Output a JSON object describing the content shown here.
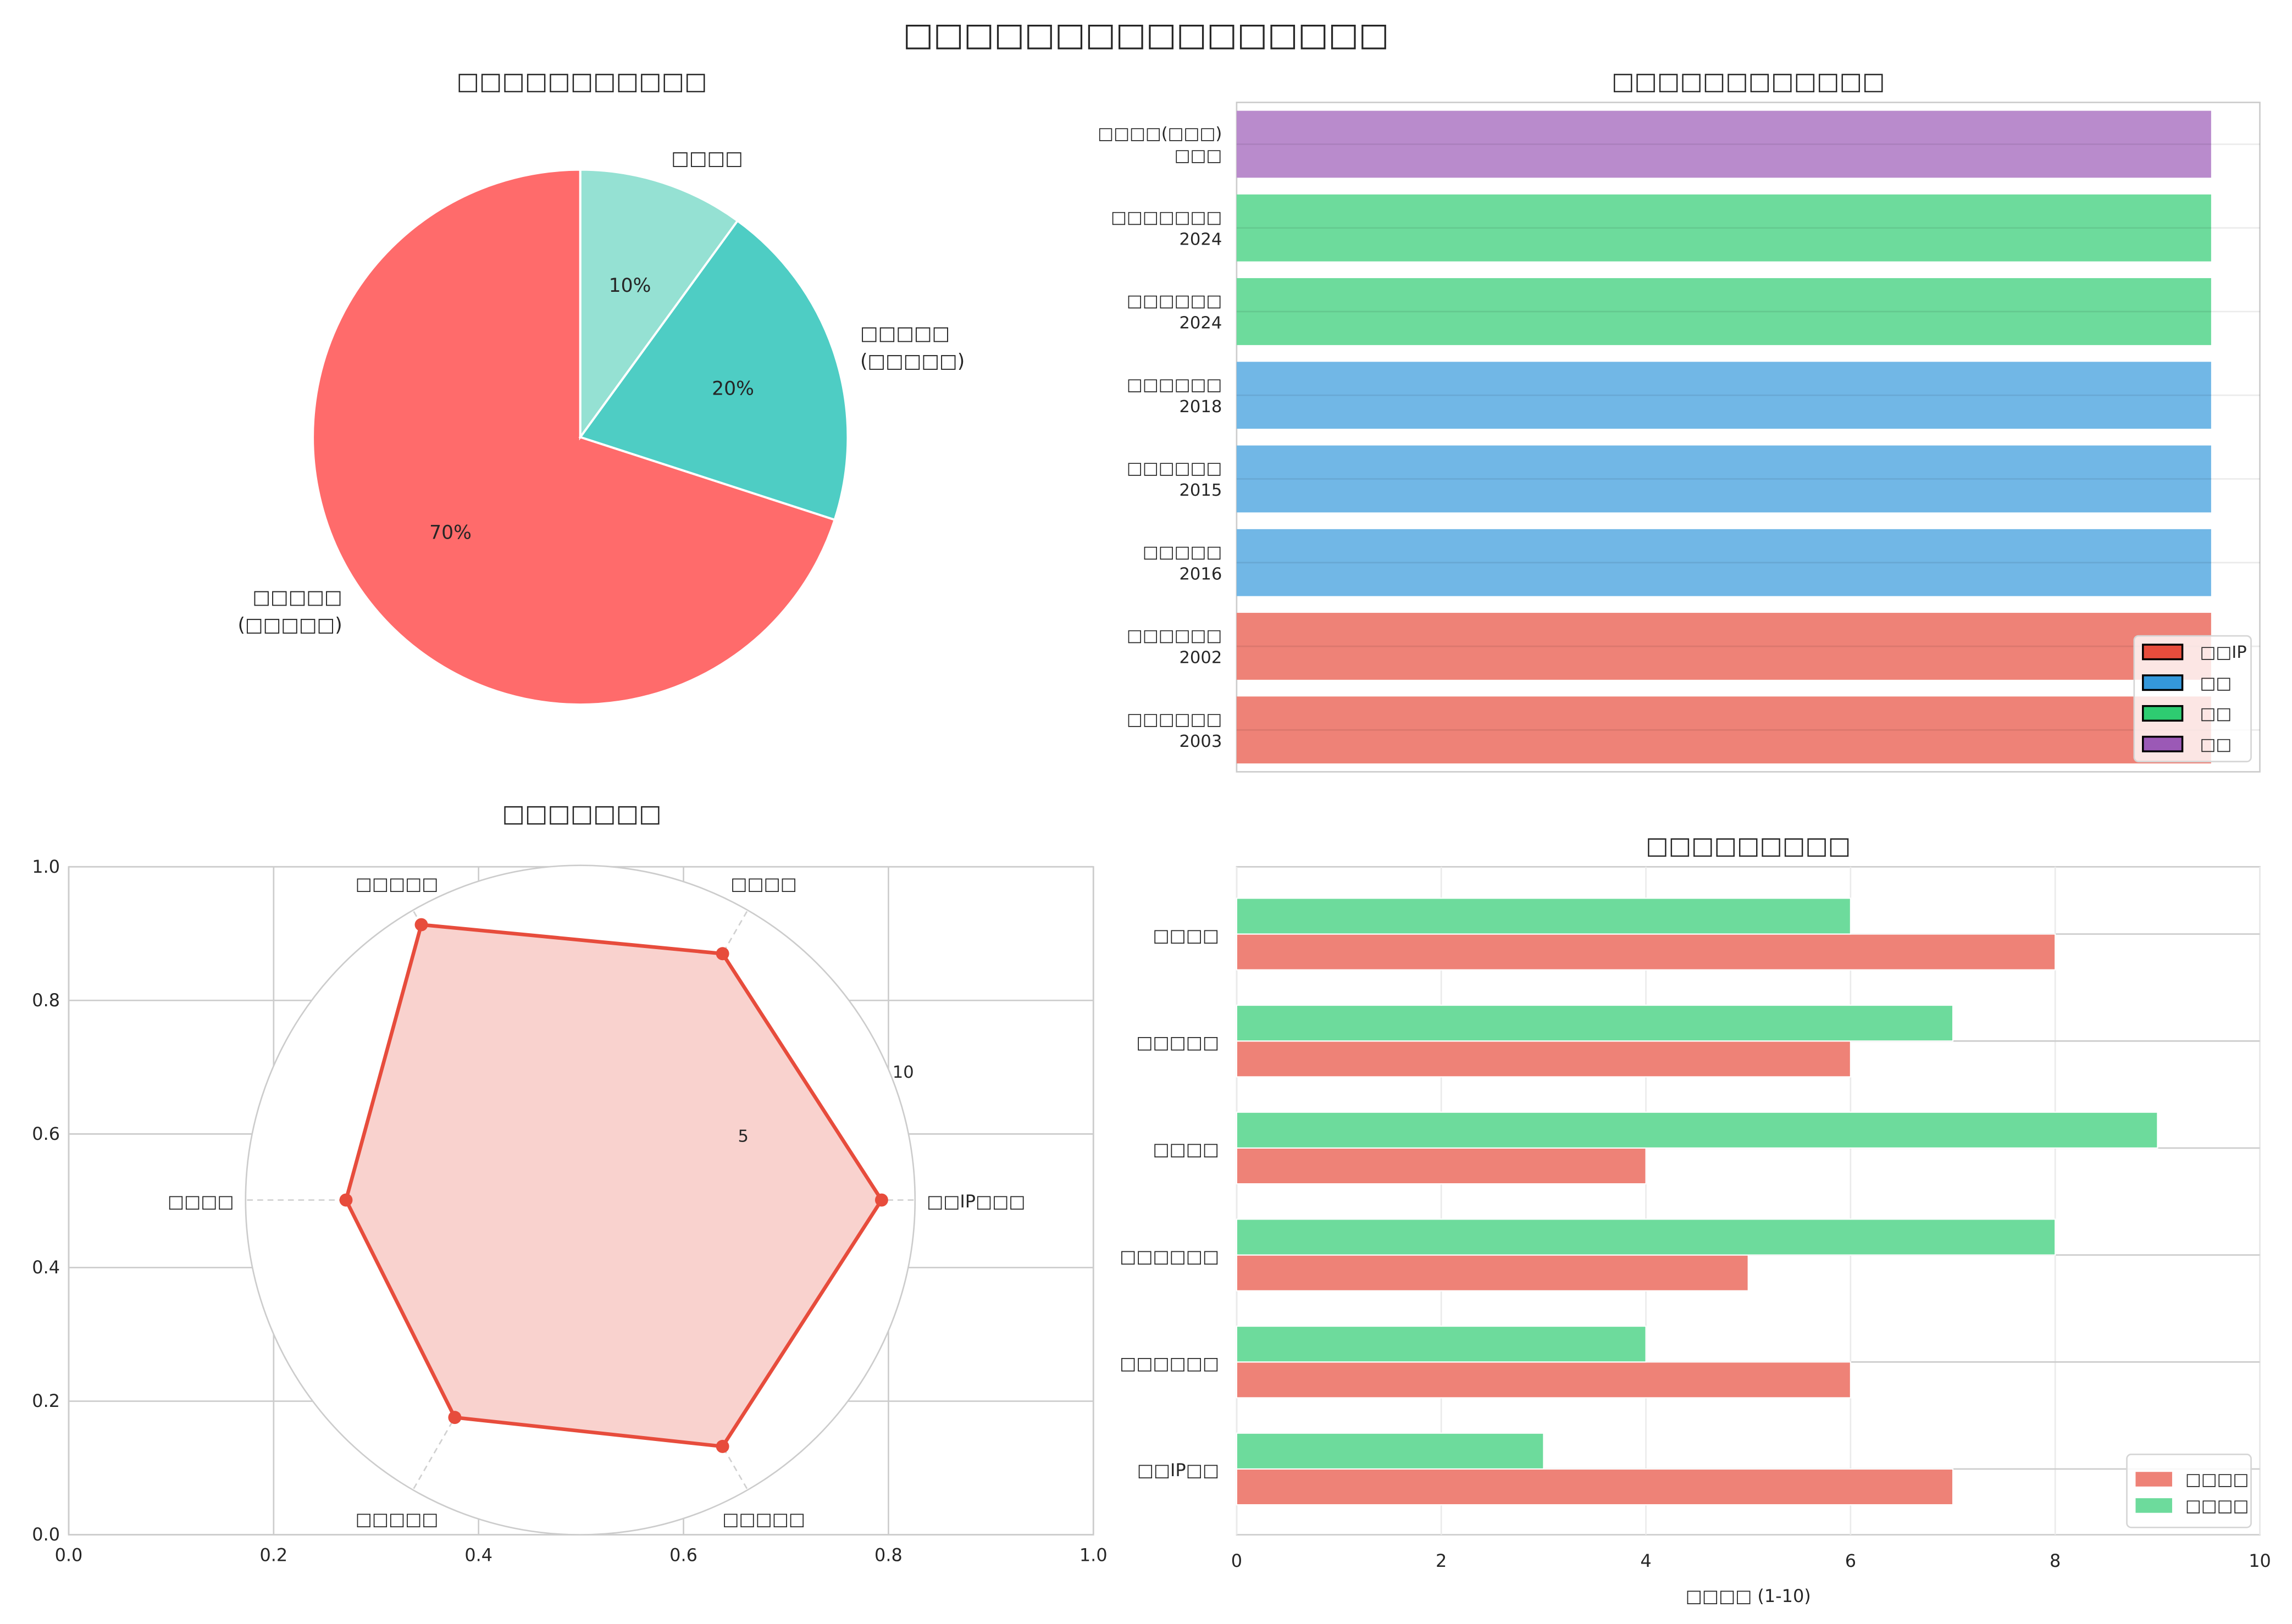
{
  "figure": {
    "title": "□□□□□□□□□□□□□□□□"
  },
  "chart_data": [
    {
      "id": "pie",
      "type": "pie",
      "title": "□□□□□□□□□□□",
      "labels": [
        "□□□□□\n(□□□□□)",
        "□□□□□\n(□□□□□)",
        "□□□□"
      ],
      "values": [
        70,
        20,
        10
      ],
      "value_labels": [
        "70%",
        "20%",
        "10%"
      ],
      "colors": [
        "#FF6B6B",
        "#4ECDC4",
        "#95E1D3"
      ],
      "startangle": 90,
      "direction": "counterclockwise"
    },
    {
      "id": "timeline",
      "type": "bar",
      "orientation": "horizontal",
      "title": "□□□□□□□□□□□□",
      "categories": [
        "□□□□(□□□)\n□□□",
        "□□□□□□□\n2024",
        "□□□□□□\n2024",
        "□□□□□□\n2018",
        "□□□□□□\n2015",
        "□□□□□\n2016",
        "□□□□□□\n2002",
        "□□□□□□\n2003"
      ],
      "values": [
        1,
        1,
        1,
        1,
        1,
        1,
        1,
        1
      ],
      "groups": [
        3,
        2,
        2,
        1,
        1,
        1,
        0,
        0
      ],
      "xlim": [
        0,
        1.05
      ],
      "xticks_visible": false,
      "grid": "horizontal",
      "legend": {
        "placement": "lower-right",
        "entries": [
          {
            "label": "□□IP",
            "color": "#E74C3C"
          },
          {
            "label": "□□",
            "color": "#3498DB"
          },
          {
            "label": "□□",
            "color": "#2ECC71"
          },
          {
            "label": "□□",
            "color": "#9B59B6"
          }
        ]
      }
    },
    {
      "id": "radar",
      "type": "radar",
      "title": "□□□□□□□",
      "axes": [
        "□□IP□□□",
        "□□□□",
        "□□□□□",
        "□□□□",
        "□□□□□",
        "□□□□□"
      ],
      "values": [
        9,
        8.5,
        9.5,
        7,
        7.5,
        8.5
      ],
      "rmax": 10,
      "rticks": [
        5,
        10
      ],
      "color": "#E74C3C",
      "background_axes": {
        "xlim": [
          0,
          1
        ],
        "ylim": [
          0,
          1
        ],
        "ticks": [
          "0.0",
          "0.2",
          "0.4",
          "0.6",
          "0.8",
          "1.0"
        ]
      }
    },
    {
      "id": "compare",
      "type": "bar",
      "orientation": "horizontal",
      "title": "□□□□□□□□□",
      "categories": [
        "□□□□",
        "□□□□□",
        "□□□□",
        "□□□□□□",
        "□□□□□□",
        "□□IP□□"
      ],
      "series": [
        {
          "name": "□□□□",
          "color": "#E74C3C",
          "values": [
            8,
            6,
            4,
            5,
            6,
            7
          ]
        },
        {
          "name": "□□□□",
          "color": "#2ECC71",
          "values": [
            6,
            7,
            9,
            8,
            4,
            3
          ]
        }
      ],
      "xlabel": "□□□□ (1-10)",
      "xlim": [
        0,
        10
      ],
      "xticks": [
        0,
        2,
        4,
        6,
        8,
        10
      ],
      "grid": true,
      "legend": {
        "placement": "lower-right"
      }
    }
  ]
}
